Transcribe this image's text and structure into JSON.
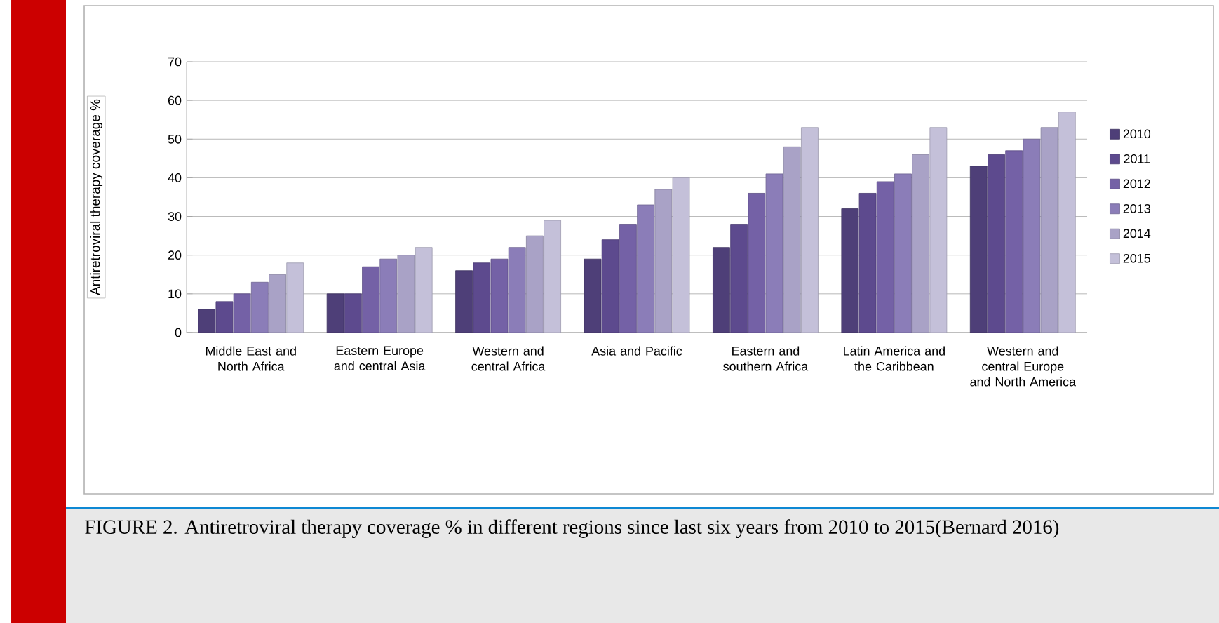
{
  "chart_data": {
    "type": "bar",
    "ylabel": "Antiretroviral therapy coverage %",
    "categories": [
      "Middle East and North Africa",
      "Eastern Europe and central Asia",
      "Western and central Africa",
      "Asia and Pacific",
      "Eastern and southern Africa",
      "Latin America and the Caribbean",
      "Western and central Europe and North America"
    ],
    "series": [
      {
        "name": "2010",
        "color": "#4e3f78",
        "values": [
          6,
          10,
          16,
          19,
          22,
          32,
          43
        ]
      },
      {
        "name": "2011",
        "color": "#5d4a8e",
        "values": [
          8,
          10,
          18,
          24,
          28,
          36,
          46
        ]
      },
      {
        "name": "2012",
        "color": "#7461a6",
        "values": [
          10,
          17,
          19,
          28,
          36,
          39,
          47
        ]
      },
      {
        "name": "2013",
        "color": "#8b7db8",
        "values": [
          13,
          19,
          22,
          33,
          41,
          41,
          50
        ]
      },
      {
        "name": "2014",
        "color": "#a9a2c6",
        "values": [
          15,
          20,
          25,
          37,
          48,
          46,
          53
        ]
      },
      {
        "name": "2015",
        "color": "#c4c0d9",
        "values": [
          18,
          22,
          29,
          40,
          53,
          53,
          57
        ]
      }
    ],
    "ylim": [
      0,
      70
    ],
    "yticks": [
      0,
      10,
      20,
      30,
      40,
      50,
      60,
      70
    ],
    "grid": "y",
    "legend": "right",
    "annotations": [
      "FIGURE 2. Antiretroviral therapy coverage % in different regions since last six years from 2010 to 2015(Bernard 2016)"
    ]
  }
}
